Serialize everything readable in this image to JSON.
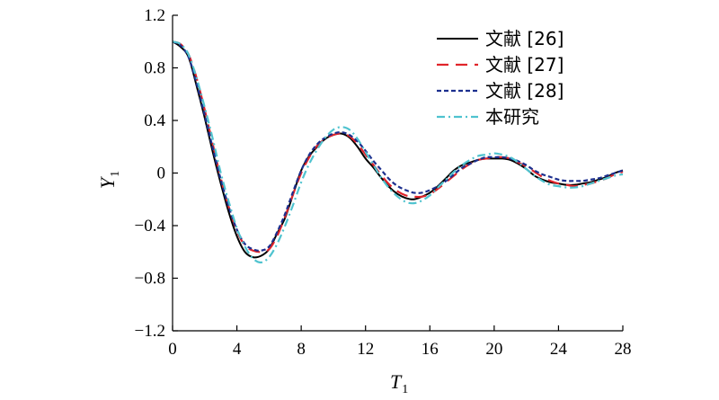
{
  "chart_data": {
    "type": "line",
    "xlabel": "T",
    "xlabel_sub": "1",
    "ylabel": "Y",
    "ylabel_sub": "1",
    "xlim": [
      0,
      28
    ],
    "ylim": [
      -1.2,
      1.2
    ],
    "xticks": [
      0,
      4,
      8,
      12,
      16,
      20,
      24,
      28
    ],
    "yticks": [
      1.2,
      0.8,
      0.4,
      0,
      -0.4,
      -0.8,
      -1.2
    ],
    "xtick_labels": [
      "0",
      "4",
      "8",
      "12",
      "16",
      "20",
      "24",
      "28"
    ],
    "ytick_labels": [
      "1.2",
      "0.8",
      "0.4",
      "0",
      "−0.4",
      "−0.8",
      "−1.2"
    ],
    "grid": false,
    "legend_position": "top-right",
    "series": [
      {
        "name": "文献 [26]",
        "color": "#000000",
        "dash": "solid",
        "x": [
          0,
          0.5,
          1,
          1.5,
          2,
          2.5,
          3,
          3.5,
          4,
          4.5,
          5,
          5.5,
          6,
          6.5,
          7,
          7.5,
          8,
          8.5,
          9,
          9.5,
          10,
          10.5,
          11,
          11.5,
          12,
          12.5,
          13,
          13.5,
          14,
          14.5,
          15,
          15.5,
          16,
          16.5,
          17,
          17.5,
          18,
          18.5,
          19,
          19.5,
          20,
          20.5,
          21,
          21.5,
          22,
          22.5,
          23,
          23.5,
          24,
          24.5,
          25,
          25.5,
          26,
          26.5,
          27,
          27.5,
          28
        ],
        "y": [
          1.0,
          0.96,
          0.88,
          0.66,
          0.42,
          0.16,
          -0.08,
          -0.3,
          -0.48,
          -0.6,
          -0.64,
          -0.63,
          -0.58,
          -0.46,
          -0.34,
          -0.16,
          0.02,
          0.13,
          0.2,
          0.26,
          0.29,
          0.3,
          0.27,
          0.2,
          0.11,
          0.04,
          -0.04,
          -0.11,
          -0.16,
          -0.19,
          -0.2,
          -0.18,
          -0.15,
          -0.1,
          -0.04,
          0.02,
          0.06,
          0.08,
          0.1,
          0.11,
          0.11,
          0.11,
          0.1,
          0.07,
          0.03,
          -0.02,
          -0.05,
          -0.07,
          -0.08,
          -0.09,
          -0.09,
          -0.08,
          -0.07,
          -0.05,
          -0.03,
          0.0,
          0.02
        ]
      },
      {
        "name": "文献 [27]",
        "color": "#e0252b",
        "dash": "long-dash",
        "x": [
          0,
          0.5,
          1,
          1.5,
          2,
          2.5,
          3,
          3.5,
          4,
          4.5,
          5,
          5.5,
          6,
          6.5,
          7,
          7.5,
          8,
          8.5,
          9,
          9.5,
          10,
          10.5,
          11,
          11.5,
          12,
          12.5,
          13,
          13.5,
          14,
          14.5,
          15,
          15.5,
          16,
          16.5,
          17,
          17.5,
          18,
          18.5,
          19,
          19.5,
          20,
          20.5,
          21,
          21.5,
          22,
          22.5,
          23,
          23.5,
          24,
          24.5,
          25,
          25.5,
          26,
          26.5,
          27,
          27.5,
          28
        ],
        "y": [
          1.0,
          0.98,
          0.9,
          0.72,
          0.48,
          0.22,
          -0.04,
          -0.26,
          -0.44,
          -0.55,
          -0.59,
          -0.6,
          -0.58,
          -0.48,
          -0.33,
          -0.16,
          0.0,
          0.12,
          0.21,
          0.26,
          0.29,
          0.3,
          0.28,
          0.22,
          0.14,
          0.06,
          -0.02,
          -0.09,
          -0.14,
          -0.17,
          -0.18,
          -0.18,
          -0.16,
          -0.12,
          -0.07,
          -0.02,
          0.03,
          0.07,
          0.1,
          0.11,
          0.12,
          0.12,
          0.11,
          0.08,
          0.05,
          0.01,
          -0.03,
          -0.06,
          -0.08,
          -0.09,
          -0.1,
          -0.09,
          -0.08,
          -0.06,
          -0.04,
          -0.01,
          0.01
        ]
      },
      {
        "name": "文献 [28]",
        "color": "#1c2f8e",
        "dash": "short-dash",
        "x": [
          0,
          0.5,
          1,
          1.5,
          2,
          2.5,
          3,
          3.5,
          4,
          4.5,
          5,
          5.5,
          6,
          6.5,
          7,
          7.5,
          8,
          8.5,
          9,
          9.5,
          10,
          10.5,
          11,
          11.5,
          12,
          12.5,
          13,
          13.5,
          14,
          14.5,
          15,
          15.5,
          16,
          16.5,
          17,
          17.5,
          18,
          18.5,
          19,
          19.5,
          20,
          20.5,
          21,
          21.5,
          22,
          22.5,
          23,
          23.5,
          24,
          24.5,
          25,
          25.5,
          26,
          26.5,
          27,
          27.5,
          28
        ],
        "y": [
          1.0,
          0.97,
          0.88,
          0.68,
          0.44,
          0.19,
          -0.05,
          -0.26,
          -0.43,
          -0.54,
          -0.58,
          -0.59,
          -0.56,
          -0.45,
          -0.31,
          -0.14,
          0.02,
          0.14,
          0.22,
          0.27,
          0.3,
          0.31,
          0.29,
          0.24,
          0.17,
          0.09,
          0.02,
          -0.05,
          -0.1,
          -0.13,
          -0.15,
          -0.15,
          -0.13,
          -0.1,
          -0.06,
          -0.01,
          0.04,
          0.07,
          0.1,
          0.12,
          0.12,
          0.12,
          0.11,
          0.09,
          0.06,
          0.02,
          -0.01,
          -0.03,
          -0.05,
          -0.06,
          -0.06,
          -0.06,
          -0.05,
          -0.04,
          -0.02,
          0.0,
          0.02
        ]
      },
      {
        "name": "本研究",
        "color": "#4fc3cf",
        "dash": "dash-dot",
        "x": [
          0,
          0.5,
          1,
          1.5,
          2,
          2.5,
          3,
          3.5,
          4,
          4.5,
          5,
          5.5,
          6,
          6.5,
          7,
          7.5,
          8,
          8.5,
          9,
          9.5,
          10,
          10.5,
          11,
          11.5,
          12,
          12.5,
          13,
          13.5,
          14,
          14.5,
          15,
          15.5,
          16,
          16.5,
          17,
          17.5,
          18,
          18.5,
          19,
          19.5,
          20,
          20.5,
          21,
          21.5,
          22,
          22.5,
          23,
          23.5,
          24,
          24.5,
          25,
          25.5,
          26,
          26.5,
          27,
          27.5,
          28
        ],
        "y": [
          1.0,
          0.98,
          0.9,
          0.72,
          0.5,
          0.26,
          0.0,
          -0.22,
          -0.42,
          -0.56,
          -0.65,
          -0.68,
          -0.64,
          -0.54,
          -0.4,
          -0.24,
          -0.07,
          0.07,
          0.18,
          0.27,
          0.33,
          0.35,
          0.33,
          0.26,
          0.16,
          0.06,
          -0.04,
          -0.12,
          -0.18,
          -0.22,
          -0.23,
          -0.21,
          -0.17,
          -0.11,
          -0.05,
          0.01,
          0.06,
          0.1,
          0.13,
          0.14,
          0.15,
          0.14,
          0.12,
          0.08,
          0.03,
          -0.02,
          -0.06,
          -0.09,
          -0.1,
          -0.11,
          -0.11,
          -0.1,
          -0.08,
          -0.06,
          -0.04,
          -0.02,
          -0.01
        ]
      }
    ]
  }
}
